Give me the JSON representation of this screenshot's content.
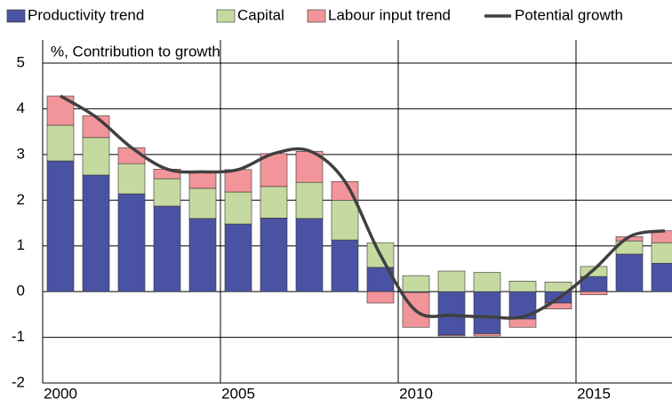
{
  "chart_data": {
    "type": "bar",
    "stacked": true,
    "y_label": "%, Contribution to growth",
    "categories": [
      "2000",
      null,
      null,
      null,
      null,
      "2005",
      null,
      null,
      null,
      null,
      "2010",
      null,
      null,
      null,
      null,
      "2015",
      null,
      null
    ],
    "series": [
      {
        "name": "Productivity trend",
        "color": "#4a53a3",
        "values": [
          2.86,
          2.55,
          2.14,
          1.87,
          1.6,
          1.48,
          1.61,
          1.6,
          1.13,
          0.53,
          -0.02,
          -0.95,
          -0.92,
          -0.6,
          -0.25,
          0.33,
          0.82,
          0.62
        ]
      },
      {
        "name": "Capital",
        "color": "#c6d9a0",
        "values": [
          0.78,
          0.82,
          0.66,
          0.6,
          0.66,
          0.7,
          0.69,
          0.79,
          0.87,
          0.54,
          0.35,
          0.45,
          0.42,
          0.23,
          0.21,
          0.22,
          0.29,
          0.45
        ]
      },
      {
        "name": "Labour input trend",
        "color": "#f2959a",
        "values": [
          0.64,
          0.48,
          0.35,
          0.21,
          0.35,
          0.49,
          0.72,
          0.68,
          0.41,
          -0.25,
          -0.76,
          -0.02,
          -0.05,
          -0.18,
          -0.13,
          -0.07,
          0.09,
          0.26
        ]
      },
      {
        "name": "Potential growth",
        "type": "line",
        "color": "#404040",
        "values": [
          4.28,
          3.82,
          3.15,
          2.68,
          2.62,
          2.67,
          3.02,
          3.08,
          2.41,
          0.8,
          -0.42,
          -0.52,
          -0.55,
          -0.55,
          -0.15,
          0.48,
          1.2,
          1.33
        ]
      }
    ],
    "ylim": [
      -2,
      5
    ],
    "yticks": [
      -2,
      -1,
      0,
      1,
      2,
      3,
      4,
      5
    ],
    "grid": true
  }
}
